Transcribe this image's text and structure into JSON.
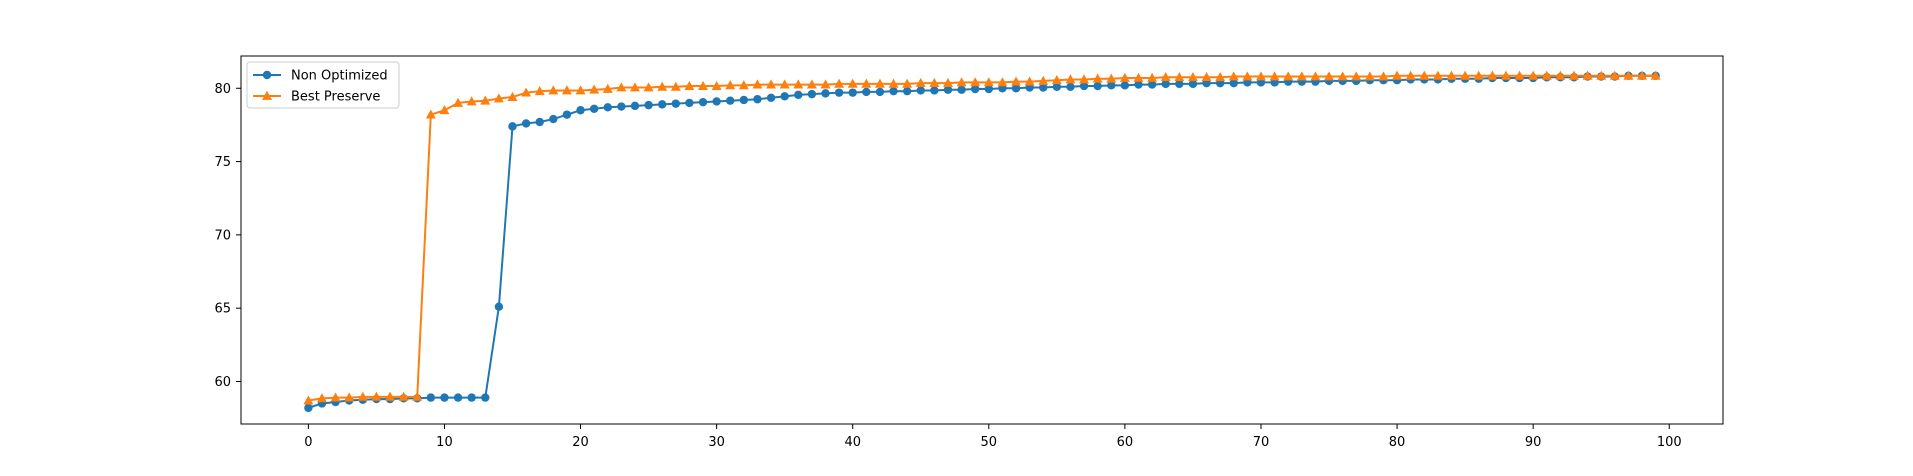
{
  "chart_data": {
    "type": "line",
    "title": "",
    "xlabel": "",
    "ylabel": "",
    "xlim": [
      -4.95,
      103.95
    ],
    "ylim": [
      57.1,
      82.2
    ],
    "xticks": [
      0,
      10,
      20,
      30,
      40,
      50,
      60,
      70,
      80,
      90,
      100
    ],
    "yticks": [
      60,
      65,
      70,
      75,
      80
    ],
    "grid": false,
    "legend": {
      "position": "top-left"
    },
    "series": [
      {
        "name": "Non Optimized",
        "color": "#1f77b4",
        "marker": "circle",
        "x": [
          0,
          1,
          2,
          3,
          4,
          5,
          6,
          7,
          8,
          9,
          10,
          11,
          12,
          13,
          14,
          15,
          16,
          17,
          18,
          19,
          20,
          21,
          22,
          23,
          24,
          25,
          26,
          27,
          28,
          29,
          30,
          31,
          32,
          33,
          34,
          35,
          36,
          37,
          38,
          39,
          40,
          41,
          42,
          43,
          44,
          45,
          46,
          47,
          48,
          49,
          50,
          51,
          52,
          53,
          54,
          55,
          56,
          57,
          58,
          59,
          60,
          61,
          62,
          63,
          64,
          65,
          66,
          67,
          68,
          69,
          70,
          71,
          72,
          73,
          74,
          75,
          76,
          77,
          78,
          79,
          80,
          81,
          82,
          83,
          84,
          85,
          86,
          87,
          88,
          89,
          90,
          91,
          92,
          93,
          94,
          95,
          96,
          97,
          98,
          99
        ],
        "values": [
          58.2,
          58.5,
          58.6,
          58.7,
          58.75,
          58.8,
          58.8,
          58.85,
          58.85,
          58.9,
          58.9,
          58.9,
          58.9,
          58.9,
          65.1,
          77.4,
          77.6,
          77.7,
          77.9,
          78.2,
          78.5,
          78.6,
          78.7,
          78.75,
          78.8,
          78.85,
          78.9,
          78.95,
          79.0,
          79.05,
          79.1,
          79.15,
          79.2,
          79.25,
          79.35,
          79.45,
          79.55,
          79.6,
          79.65,
          79.7,
          79.7,
          79.75,
          79.75,
          79.8,
          79.8,
          79.85,
          79.85,
          79.9,
          79.9,
          79.95,
          79.95,
          80.0,
          80.0,
          80.05,
          80.05,
          80.1,
          80.1,
          80.15,
          80.15,
          80.2,
          80.2,
          80.25,
          80.25,
          80.3,
          80.3,
          80.3,
          80.35,
          80.35,
          80.35,
          80.4,
          80.4,
          80.4,
          80.45,
          80.45,
          80.45,
          80.5,
          80.5,
          80.5,
          80.55,
          80.55,
          80.55,
          80.6,
          80.6,
          80.6,
          80.65,
          80.65,
          80.65,
          80.7,
          80.7,
          80.7,
          80.7,
          80.75,
          80.75,
          80.75,
          80.8,
          80.8,
          80.8,
          80.85,
          80.85,
          80.85
        ]
      },
      {
        "name": "Best Preserve",
        "color": "#ff7f0e",
        "marker": "triangle",
        "x": [
          0,
          1,
          2,
          3,
          4,
          5,
          6,
          7,
          8,
          9,
          10,
          11,
          12,
          13,
          14,
          15,
          16,
          17,
          18,
          19,
          20,
          21,
          22,
          23,
          24,
          25,
          26,
          27,
          28,
          29,
          30,
          31,
          32,
          33,
          34,
          35,
          36,
          37,
          38,
          39,
          40,
          41,
          42,
          43,
          44,
          45,
          46,
          47,
          48,
          49,
          50,
          51,
          52,
          53,
          54,
          55,
          56,
          57,
          58,
          59,
          60,
          61,
          62,
          63,
          64,
          65,
          66,
          67,
          68,
          69,
          70,
          71,
          72,
          73,
          74,
          75,
          76,
          77,
          78,
          79,
          80,
          81,
          82,
          83,
          84,
          85,
          86,
          87,
          88,
          89,
          90,
          91,
          92,
          93,
          94,
          95,
          96,
          97,
          98,
          99
        ],
        "values": [
          58.7,
          58.85,
          58.9,
          58.9,
          58.95,
          58.95,
          58.95,
          58.95,
          58.95,
          78.2,
          78.5,
          79.0,
          79.1,
          79.15,
          79.3,
          79.4,
          79.7,
          79.8,
          79.85,
          79.85,
          79.85,
          79.9,
          79.95,
          80.05,
          80.05,
          80.05,
          80.1,
          80.1,
          80.15,
          80.15,
          80.15,
          80.2,
          80.2,
          80.25,
          80.25,
          80.25,
          80.25,
          80.25,
          80.25,
          80.3,
          80.3,
          80.3,
          80.3,
          80.3,
          80.3,
          80.35,
          80.35,
          80.35,
          80.4,
          80.4,
          80.4,
          80.4,
          80.45,
          80.45,
          80.5,
          80.55,
          80.6,
          80.6,
          80.65,
          80.65,
          80.7,
          80.7,
          80.7,
          80.75,
          80.75,
          80.75,
          80.75,
          80.75,
          80.8,
          80.8,
          80.8,
          80.8,
          80.8,
          80.8,
          80.8,
          80.8,
          80.8,
          80.8,
          80.8,
          80.8,
          80.85,
          80.85,
          80.85,
          80.85,
          80.85,
          80.85,
          80.85,
          80.85,
          80.85,
          80.85,
          80.85,
          80.85,
          80.85,
          80.85,
          80.85,
          80.85,
          80.85,
          80.85,
          80.85,
          80.85
        ]
      }
    ]
  }
}
